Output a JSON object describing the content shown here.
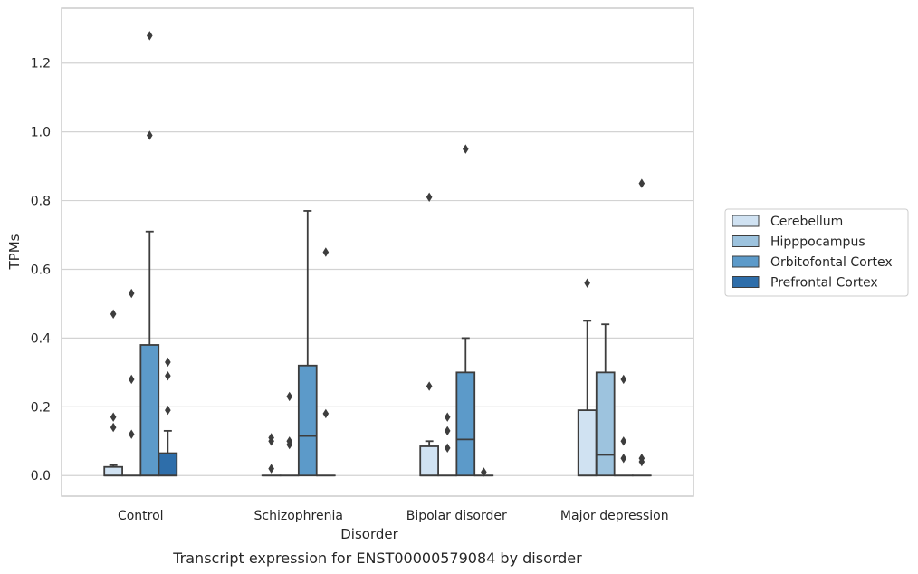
{
  "chart_data": {
    "type": "box",
    "title": "Transcript expression for ENST00000579084 by disorder",
    "xlabel": "Disorder",
    "ylabel": "TPMs",
    "ylim": [
      -0.06,
      1.36
    ],
    "yticks": [
      "0.0",
      "0.2",
      "0.4",
      "0.6",
      "0.8",
      "1.0",
      "1.2"
    ],
    "grid": "horizontal",
    "legend_position": "right",
    "categories": [
      "Control",
      "Schizophrenia",
      "Bipolar disorder",
      "Major depression"
    ],
    "series": [
      {
        "name": "Cerebellum",
        "color": "#d0e2f2",
        "boxes": [
          {
            "category": "Control",
            "whisker_low": 0.0,
            "q1": 0.0,
            "median": 0.0,
            "q3": 0.025,
            "whisker_high": 0.03,
            "outliers": [
              0.14,
              0.17,
              0.47
            ]
          },
          {
            "category": "Schizophrenia",
            "whisker_low": 0.0,
            "q1": 0.0,
            "median": 0.0,
            "q3": 0.0,
            "whisker_high": 0.0,
            "outliers": [
              0.02,
              0.1,
              0.11
            ]
          },
          {
            "category": "Bipolar disorder",
            "whisker_low": 0.0,
            "q1": 0.0,
            "median": 0.0,
            "q3": 0.085,
            "whisker_high": 0.1,
            "outliers": [
              0.26,
              0.81
            ]
          },
          {
            "category": "Major depression",
            "whisker_low": 0.0,
            "q1": 0.0,
            "median": 0.0,
            "q3": 0.19,
            "whisker_high": 0.45,
            "outliers": [
              0.56
            ]
          }
        ]
      },
      {
        "name": "Hipppocampus",
        "color": "#9dc3de",
        "boxes": [
          {
            "category": "Control",
            "whisker_low": 0.0,
            "q1": 0.0,
            "median": 0.0,
            "q3": 0.0,
            "whisker_high": 0.0,
            "outliers": [
              0.12,
              0.28,
              0.53
            ]
          },
          {
            "category": "Schizophrenia",
            "whisker_low": 0.0,
            "q1": 0.0,
            "median": 0.0,
            "q3": 0.0,
            "whisker_high": 0.0,
            "outliers": [
              0.09,
              0.1,
              0.23
            ]
          },
          {
            "category": "Bipolar disorder",
            "whisker_low": 0.0,
            "q1": 0.0,
            "median": 0.0,
            "q3": 0.0,
            "whisker_high": 0.0,
            "outliers": [
              0.08,
              0.13,
              0.17
            ]
          },
          {
            "category": "Major depression",
            "whisker_low": 0.0,
            "q1": 0.0,
            "median": 0.06,
            "q3": 0.3,
            "whisker_high": 0.44,
            "outliers": []
          }
        ]
      },
      {
        "name": "Orbitofontal Cortex",
        "color": "#5c9ac9",
        "boxes": [
          {
            "category": "Control",
            "whisker_low": 0.0,
            "q1": 0.0,
            "median": 0.0,
            "q3": 0.38,
            "whisker_high": 0.71,
            "outliers": [
              0.99,
              1.28
            ]
          },
          {
            "category": "Schizophrenia",
            "whisker_low": 0.0,
            "q1": 0.0,
            "median": 0.115,
            "q3": 0.32,
            "whisker_high": 0.77,
            "outliers": []
          },
          {
            "category": "Bipolar disorder",
            "whisker_low": 0.0,
            "q1": 0.0,
            "median": 0.105,
            "q3": 0.3,
            "whisker_high": 0.4,
            "outliers": [
              0.95
            ]
          },
          {
            "category": "Major depression",
            "whisker_low": 0.0,
            "q1": 0.0,
            "median": 0.0,
            "q3": 0.0,
            "whisker_high": 0.0,
            "outliers": [
              0.05,
              0.1,
              0.28
            ]
          }
        ]
      },
      {
        "name": "Prefrontal Cortex",
        "color": "#2e6eaa",
        "boxes": [
          {
            "category": "Control",
            "whisker_low": 0.0,
            "q1": 0.0,
            "median": 0.0,
            "q3": 0.065,
            "whisker_high": 0.13,
            "outliers": [
              0.19,
              0.29,
              0.33
            ]
          },
          {
            "category": "Schizophrenia",
            "whisker_low": 0.0,
            "q1": 0.0,
            "median": 0.0,
            "q3": 0.0,
            "whisker_high": 0.0,
            "outliers": [
              0.18,
              0.65
            ]
          },
          {
            "category": "Bipolar disorder",
            "whisker_low": 0.0,
            "q1": 0.0,
            "median": 0.0,
            "q3": 0.0,
            "whisker_high": 0.0,
            "outliers": [
              0.01
            ]
          },
          {
            "category": "Major depression",
            "whisker_low": 0.0,
            "q1": 0.0,
            "median": 0.0,
            "q3": 0.0,
            "whisker_high": 0.0,
            "outliers": [
              0.04,
              0.05,
              0.85
            ]
          }
        ]
      }
    ]
  }
}
